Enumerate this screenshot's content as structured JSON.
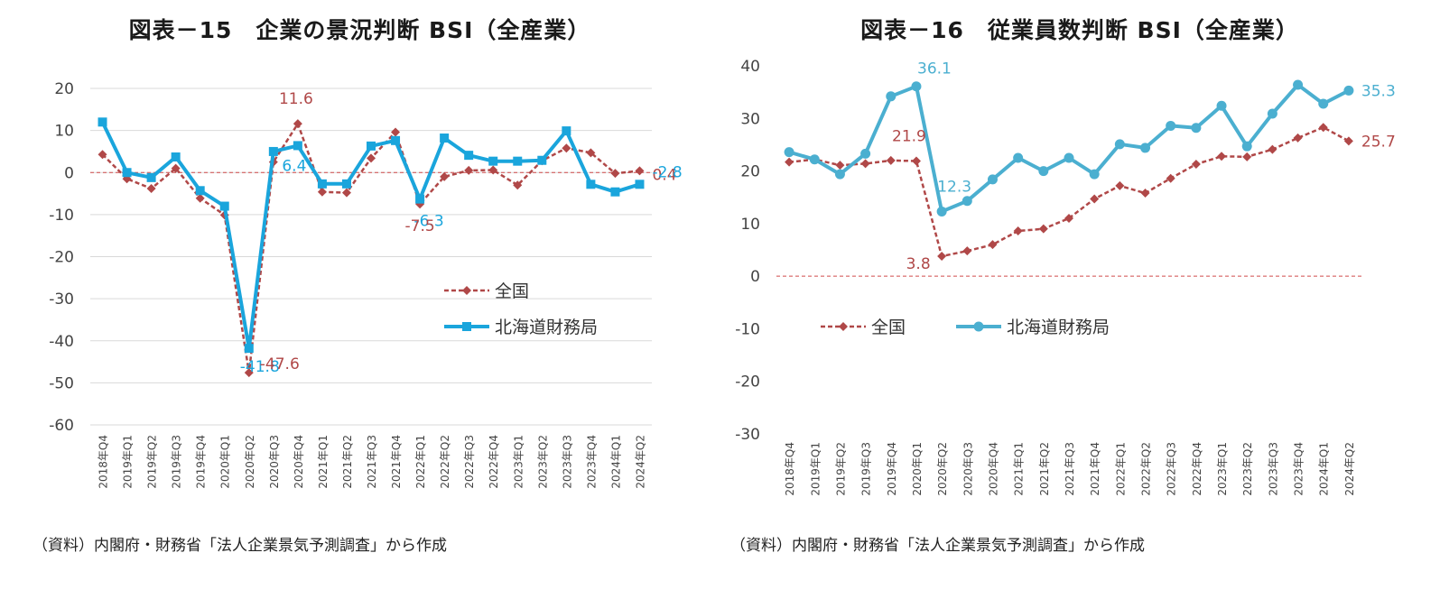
{
  "chart_data": [
    {
      "type": "line",
      "title": "図表－15　企業の景況判断 BSI（全産業）",
      "source": "（資料）内閣府・財務省「法人企業景気予測調査」から作成",
      "categories": [
        "2018年Q4",
        "2019年Q1",
        "2019年Q2",
        "2019年Q3",
        "2019年Q4",
        "2020年Q1",
        "2020年Q2",
        "2020年Q3",
        "2020年Q4",
        "2021年Q1",
        "2021年Q2",
        "2021年Q3",
        "2021年Q4",
        "2022年Q1",
        "2022年Q2",
        "2022年Q3",
        "2022年Q4",
        "2023年Q1",
        "2023年Q2",
        "2023年Q3",
        "2023年Q4",
        "2024年Q1",
        "2024年Q2"
      ],
      "ylim": [
        -60,
        20
      ],
      "yticks": [
        20,
        10,
        0,
        -10,
        -20,
        -30,
        -40,
        -50,
        -60
      ],
      "grid": true,
      "legend": "center-right",
      "series": [
        {
          "name": "全国",
          "color": "#b04848",
          "style": "dashed-diamond",
          "values": [
            4.3,
            -1.5,
            -3.8,
            1.0,
            -6.1,
            -10.1,
            -47.6,
            2.5,
            11.6,
            -4.6,
            -4.8,
            3.4,
            9.6,
            -7.5,
            -1.0,
            0.5,
            0.6,
            -3.0,
            2.8,
            5.8,
            4.7,
            -0.2,
            0.4
          ]
        },
        {
          "name": "北海道財務局",
          "color": "#1aa5dc",
          "style": "solid-square",
          "values": [
            12.0,
            0.0,
            -1.2,
            3.7,
            -4.3,
            -8.0,
            -41.8,
            5.0,
            6.4,
            -2.7,
            -2.7,
            6.3,
            7.6,
            -6.3,
            8.2,
            4.1,
            2.7,
            2.7,
            2.9,
            9.9,
            -2.8,
            -4.6,
            -2.8
          ]
        }
      ],
      "data_labels": [
        {
          "series": 0,
          "index": 8,
          "text": "11.6"
        },
        {
          "series": 1,
          "index": 8,
          "text": "6.4"
        },
        {
          "series": 1,
          "index": 13,
          "text": "-6.3"
        },
        {
          "series": 0,
          "index": 13,
          "text": "-7.5"
        },
        {
          "series": 1,
          "index": 6,
          "text": "-41.8"
        },
        {
          "series": 0,
          "index": 6,
          "text": "-47.6"
        },
        {
          "series": 0,
          "index": 22,
          "text": "0.4"
        },
        {
          "series": 1,
          "index": 22,
          "text": "-2.8"
        }
      ]
    },
    {
      "type": "line",
      "title": "図表－16　従業員数判断 BSI（全産業）",
      "source": "（資料）内閣府・財務省「法人企業景気予測調査」から作成",
      "categories": [
        "2018年Q4",
        "2019年Q1",
        "2019年Q2",
        "2019年Q3",
        "2019年Q4",
        "2020年Q1",
        "2020年Q2",
        "2020年Q3",
        "2020年Q4",
        "2021年Q1",
        "2021年Q2",
        "2021年Q3",
        "2021年Q4",
        "2022年Q1",
        "2022年Q2",
        "2022年Q3",
        "2022年Q4",
        "2023年Q1",
        "2023年Q2",
        "2023年Q3",
        "2023年Q4",
        "2024年Q1",
        "2024年Q2"
      ],
      "ylim": [
        -30,
        40
      ],
      "yticks": [
        40,
        30,
        20,
        10,
        0,
        -10,
        -20,
        -30
      ],
      "grid": false,
      "legend": "center-left",
      "series": [
        {
          "name": "全国",
          "color": "#b04848",
          "style": "dashed-diamond",
          "values": [
            21.7,
            22.2,
            21.1,
            21.4,
            22.0,
            21.9,
            3.8,
            4.8,
            6.0,
            8.6,
            9.0,
            11.0,
            14.7,
            17.2,
            15.8,
            18.6,
            21.3,
            22.8,
            22.7,
            24.1,
            26.3,
            28.3,
            25.7
          ]
        },
        {
          "name": "北海道財務局",
          "color": "#4bafd0",
          "style": "solid-circle",
          "values": [
            23.6,
            22.2,
            19.4,
            23.3,
            34.2,
            36.1,
            12.3,
            14.3,
            18.4,
            22.5,
            20.0,
            22.5,
            19.4,
            25.1,
            24.4,
            28.6,
            28.2,
            32.4,
            24.7,
            30.9,
            36.4,
            32.8,
            35.3
          ]
        }
      ],
      "data_labels": [
        {
          "series": 1,
          "index": 5,
          "text": "36.1"
        },
        {
          "series": 0,
          "index": 5,
          "text": "21.9"
        },
        {
          "series": 1,
          "index": 6,
          "text": "12.3"
        },
        {
          "series": 0,
          "index": 6,
          "text": "3.8"
        },
        {
          "series": 1,
          "index": 22,
          "text": "35.3"
        },
        {
          "series": 0,
          "index": 22,
          "text": "25.7"
        }
      ]
    }
  ]
}
